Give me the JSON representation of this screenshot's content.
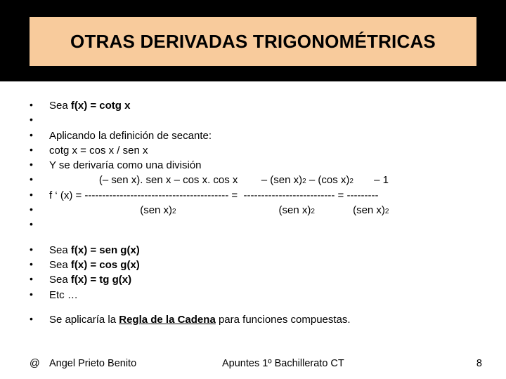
{
  "colors": {
    "title_bg": "#f8cb9c",
    "black_bar": "#000000",
    "page_bg": "#ffffff",
    "text": "#000000"
  },
  "typography": {
    "title_fontsize": 26,
    "body_fontsize": 15,
    "footer_fontsize": 14.5,
    "font_family": "Arial"
  },
  "title": "OTRAS DERIVADAS TRIGONOMÉTRICAS",
  "bullets1": [
    {
      "prefix": "Sea  ",
      "bold": "f(x) = cotg x",
      "suffix": ""
    },
    {
      "prefix": "",
      "bold": "",
      "suffix": ""
    },
    {
      "prefix": "Aplicando la definición de secante:",
      "bold": "",
      "suffix": ""
    },
    {
      "prefix": "cotg x = cos x / sen x",
      "bold": "",
      "suffix": ""
    },
    {
      "prefix": "Y se derivaría como una división",
      "bold": "",
      "suffix": ""
    }
  ],
  "eq_numer": {
    "indent": "                 ",
    "lhs": "(– sen x). sen x – cos x. cos x",
    "gap1": "        ",
    "mid": "– (sen x)",
    "mid2": " – (cos x)",
    "gap2": "       ",
    "rhs": "– 1"
  },
  "eq_frac": {
    "lhs": "f ‘ (x) = ",
    "d1": "-----------------------------------------",
    "eq1": " =  ",
    "d2": "--------------------------",
    "eq2": " = ",
    "d3": "---------"
  },
  "eq_denom": {
    "indent1": "                               ",
    "a": "(sen x)",
    "indent2": "                                   ",
    "b": "(sen x)",
    "indent3": "             ",
    "c": "(sen x)"
  },
  "bullets2": [
    {
      "prefix": "Sea   ",
      "bold": "f(x) = sen g(x)"
    },
    {
      "prefix": "Sea   ",
      "bold": "f(x) = cos g(x)"
    },
    {
      "prefix": "Sea   ",
      "bold": "f(x) = tg g(x)"
    },
    {
      "prefix": "Etc …",
      "bold": ""
    }
  ],
  "bullets3": {
    "pre": "Se aplicaría la ",
    "under": "Regla de la Cadena",
    "post": " para funciones compuestas."
  },
  "footer": {
    "at": "@",
    "author": "Angel Prieto Benito",
    "center": "Apuntes 1º Bachillerato CT",
    "page": "8"
  }
}
